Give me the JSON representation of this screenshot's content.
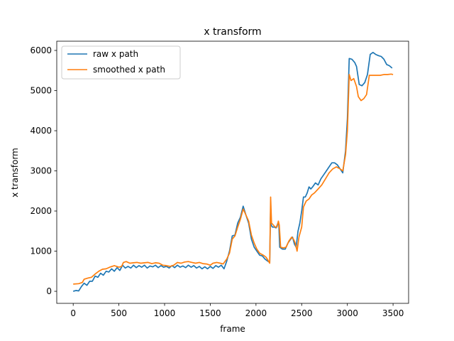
{
  "chart_data": {
    "type": "line",
    "title": "x transform",
    "xlabel": "frame",
    "ylabel": "x transform",
    "xlim": [
      -180,
      3670
    ],
    "ylim": [
      -300,
      6230
    ],
    "xticks": [
      0,
      500,
      1000,
      1500,
      2000,
      2500,
      3000,
      3500
    ],
    "yticks": [
      0,
      1000,
      2000,
      3000,
      4000,
      5000,
      6000
    ],
    "grid": false,
    "legend": "top-left",
    "series": [
      {
        "name": "raw x path",
        "color": "#1f77b4",
        "points": [
          [
            0,
            0
          ],
          [
            30,
            20
          ],
          [
            60,
            10
          ],
          [
            90,
            120
          ],
          [
            120,
            200
          ],
          [
            150,
            150
          ],
          [
            180,
            250
          ],
          [
            210,
            250
          ],
          [
            240,
            380
          ],
          [
            270,
            350
          ],
          [
            300,
            450
          ],
          [
            330,
            400
          ],
          [
            360,
            500
          ],
          [
            390,
            480
          ],
          [
            420,
            560
          ],
          [
            450,
            500
          ],
          [
            480,
            590
          ],
          [
            510,
            520
          ],
          [
            540,
            650
          ],
          [
            570,
            580
          ],
          [
            600,
            620
          ],
          [
            630,
            580
          ],
          [
            660,
            650
          ],
          [
            690,
            590
          ],
          [
            720,
            640
          ],
          [
            750,
            600
          ],
          [
            780,
            650
          ],
          [
            810,
            580
          ],
          [
            840,
            630
          ],
          [
            870,
            610
          ],
          [
            900,
            650
          ],
          [
            930,
            590
          ],
          [
            960,
            640
          ],
          [
            990,
            600
          ],
          [
            1020,
            620
          ],
          [
            1050,
            580
          ],
          [
            1080,
            640
          ],
          [
            1110,
            590
          ],
          [
            1140,
            650
          ],
          [
            1170,
            600
          ],
          [
            1200,
            630
          ],
          [
            1230,
            590
          ],
          [
            1260,
            650
          ],
          [
            1290,
            600
          ],
          [
            1320,
            640
          ],
          [
            1350,
            580
          ],
          [
            1380,
            620
          ],
          [
            1410,
            560
          ],
          [
            1440,
            610
          ],
          [
            1470,
            560
          ],
          [
            1500,
            620
          ],
          [
            1530,
            570
          ],
          [
            1560,
            640
          ],
          [
            1590,
            600
          ],
          [
            1620,
            650
          ],
          [
            1650,
            560
          ],
          [
            1680,
            750
          ],
          [
            1710,
            1000
          ],
          [
            1740,
            1380
          ],
          [
            1770,
            1400
          ],
          [
            1800,
            1700
          ],
          [
            1830,
            1850
          ],
          [
            1860,
            2120
          ],
          [
            1890,
            1900
          ],
          [
            1920,
            1700
          ],
          [
            1950,
            1300
          ],
          [
            1980,
            1100
          ],
          [
            2010,
            1000
          ],
          [
            2040,
            900
          ],
          [
            2070,
            880
          ],
          [
            2100,
            800
          ],
          [
            2130,
            750
          ],
          [
            2150,
            720
          ],
          [
            2160,
            2150
          ],
          [
            2165,
            1650
          ],
          [
            2180,
            1600
          ],
          [
            2200,
            1600
          ],
          [
            2220,
            1580
          ],
          [
            2240,
            1700
          ],
          [
            2250,
            1650
          ],
          [
            2260,
            1100
          ],
          [
            2290,
            1050
          ],
          [
            2320,
            1050
          ],
          [
            2350,
            1200
          ],
          [
            2380,
            1300
          ],
          [
            2400,
            1350
          ],
          [
            2420,
            1180
          ],
          [
            2440,
            1100
          ],
          [
            2460,
            1500
          ],
          [
            2480,
            1700
          ],
          [
            2500,
            2000
          ],
          [
            2520,
            2350
          ],
          [
            2540,
            2350
          ],
          [
            2560,
            2450
          ],
          [
            2580,
            2600
          ],
          [
            2600,
            2550
          ],
          [
            2620,
            2600
          ],
          [
            2650,
            2700
          ],
          [
            2680,
            2650
          ],
          [
            2710,
            2800
          ],
          [
            2740,
            2900
          ],
          [
            2770,
            3000
          ],
          [
            2800,
            3100
          ],
          [
            2830,
            3200
          ],
          [
            2860,
            3200
          ],
          [
            2890,
            3150
          ],
          [
            2920,
            3050
          ],
          [
            2950,
            2950
          ],
          [
            2980,
            3500
          ],
          [
            3000,
            4300
          ],
          [
            3020,
            5800
          ],
          [
            3050,
            5780
          ],
          [
            3080,
            5700
          ],
          [
            3100,
            5600
          ],
          [
            3130,
            5150
          ],
          [
            3160,
            5120
          ],
          [
            3190,
            5200
          ],
          [
            3220,
            5400
          ],
          [
            3250,
            5900
          ],
          [
            3280,
            5950
          ],
          [
            3310,
            5900
          ],
          [
            3340,
            5870
          ],
          [
            3370,
            5850
          ],
          [
            3400,
            5780
          ],
          [
            3430,
            5650
          ],
          [
            3460,
            5620
          ],
          [
            3490,
            5560
          ]
        ]
      },
      {
        "name": "smoothed x path",
        "color": "#ff7f0e",
        "points": [
          [
            0,
            180
          ],
          [
            60,
            190
          ],
          [
            100,
            220
          ],
          [
            120,
            300
          ],
          [
            160,
            330
          ],
          [
            200,
            350
          ],
          [
            240,
            430
          ],
          [
            280,
            500
          ],
          [
            320,
            550
          ],
          [
            360,
            560
          ],
          [
            400,
            600
          ],
          [
            450,
            640
          ],
          [
            500,
            600
          ],
          [
            530,
            620
          ],
          [
            550,
            720
          ],
          [
            580,
            740
          ],
          [
            620,
            700
          ],
          [
            660,
            710
          ],
          [
            700,
            720
          ],
          [
            740,
            700
          ],
          [
            780,
            710
          ],
          [
            820,
            720
          ],
          [
            860,
            690
          ],
          [
            900,
            710
          ],
          [
            940,
            700
          ],
          [
            980,
            650
          ],
          [
            1020,
            640
          ],
          [
            1060,
            620
          ],
          [
            1100,
            650
          ],
          [
            1140,
            720
          ],
          [
            1180,
            700
          ],
          [
            1220,
            730
          ],
          [
            1260,
            740
          ],
          [
            1300,
            720
          ],
          [
            1340,
            700
          ],
          [
            1380,
            720
          ],
          [
            1420,
            690
          ],
          [
            1460,
            680
          ],
          [
            1500,
            650
          ],
          [
            1530,
            700
          ],
          [
            1570,
            720
          ],
          [
            1610,
            700
          ],
          [
            1640,
            680
          ],
          [
            1680,
            800
          ],
          [
            1710,
            950
          ],
          [
            1740,
            1300
          ],
          [
            1770,
            1380
          ],
          [
            1800,
            1600
          ],
          [
            1830,
            1800
          ],
          [
            1860,
            2050
          ],
          [
            1890,
            1900
          ],
          [
            1920,
            1750
          ],
          [
            1950,
            1400
          ],
          [
            1980,
            1200
          ],
          [
            2010,
            1050
          ],
          [
            2040,
            950
          ],
          [
            2080,
            900
          ],
          [
            2110,
            850
          ],
          [
            2130,
            780
          ],
          [
            2150,
            700
          ],
          [
            2160,
            2350
          ],
          [
            2170,
            1700
          ],
          [
            2190,
            1650
          ],
          [
            2210,
            1600
          ],
          [
            2230,
            1600
          ],
          [
            2245,
            1750
          ],
          [
            2255,
            1650
          ],
          [
            2270,
            1100
          ],
          [
            2300,
            1080
          ],
          [
            2330,
            1100
          ],
          [
            2360,
            1250
          ],
          [
            2390,
            1350
          ],
          [
            2410,
            1300
          ],
          [
            2430,
            1200
          ],
          [
            2450,
            1000
          ],
          [
            2470,
            1350
          ],
          [
            2500,
            1600
          ],
          [
            2520,
            2100
          ],
          [
            2550,
            2250
          ],
          [
            2580,
            2300
          ],
          [
            2610,
            2400
          ],
          [
            2640,
            2450
          ],
          [
            2680,
            2550
          ],
          [
            2720,
            2650
          ],
          [
            2760,
            2800
          ],
          [
            2800,
            2950
          ],
          [
            2840,
            3050
          ],
          [
            2880,
            3100
          ],
          [
            2920,
            3050
          ],
          [
            2950,
            3000
          ],
          [
            2980,
            3400
          ],
          [
            3000,
            4000
          ],
          [
            3020,
            5400
          ],
          [
            3040,
            5250
          ],
          [
            3070,
            5300
          ],
          [
            3100,
            5100
          ],
          [
            3120,
            4850
          ],
          [
            3150,
            4750
          ],
          [
            3180,
            4800
          ],
          [
            3210,
            4900
          ],
          [
            3240,
            5380
          ],
          [
            3280,
            5380
          ],
          [
            3320,
            5380
          ],
          [
            3360,
            5380
          ],
          [
            3400,
            5400
          ],
          [
            3440,
            5400
          ],
          [
            3480,
            5410
          ],
          [
            3500,
            5400
          ]
        ]
      }
    ]
  }
}
